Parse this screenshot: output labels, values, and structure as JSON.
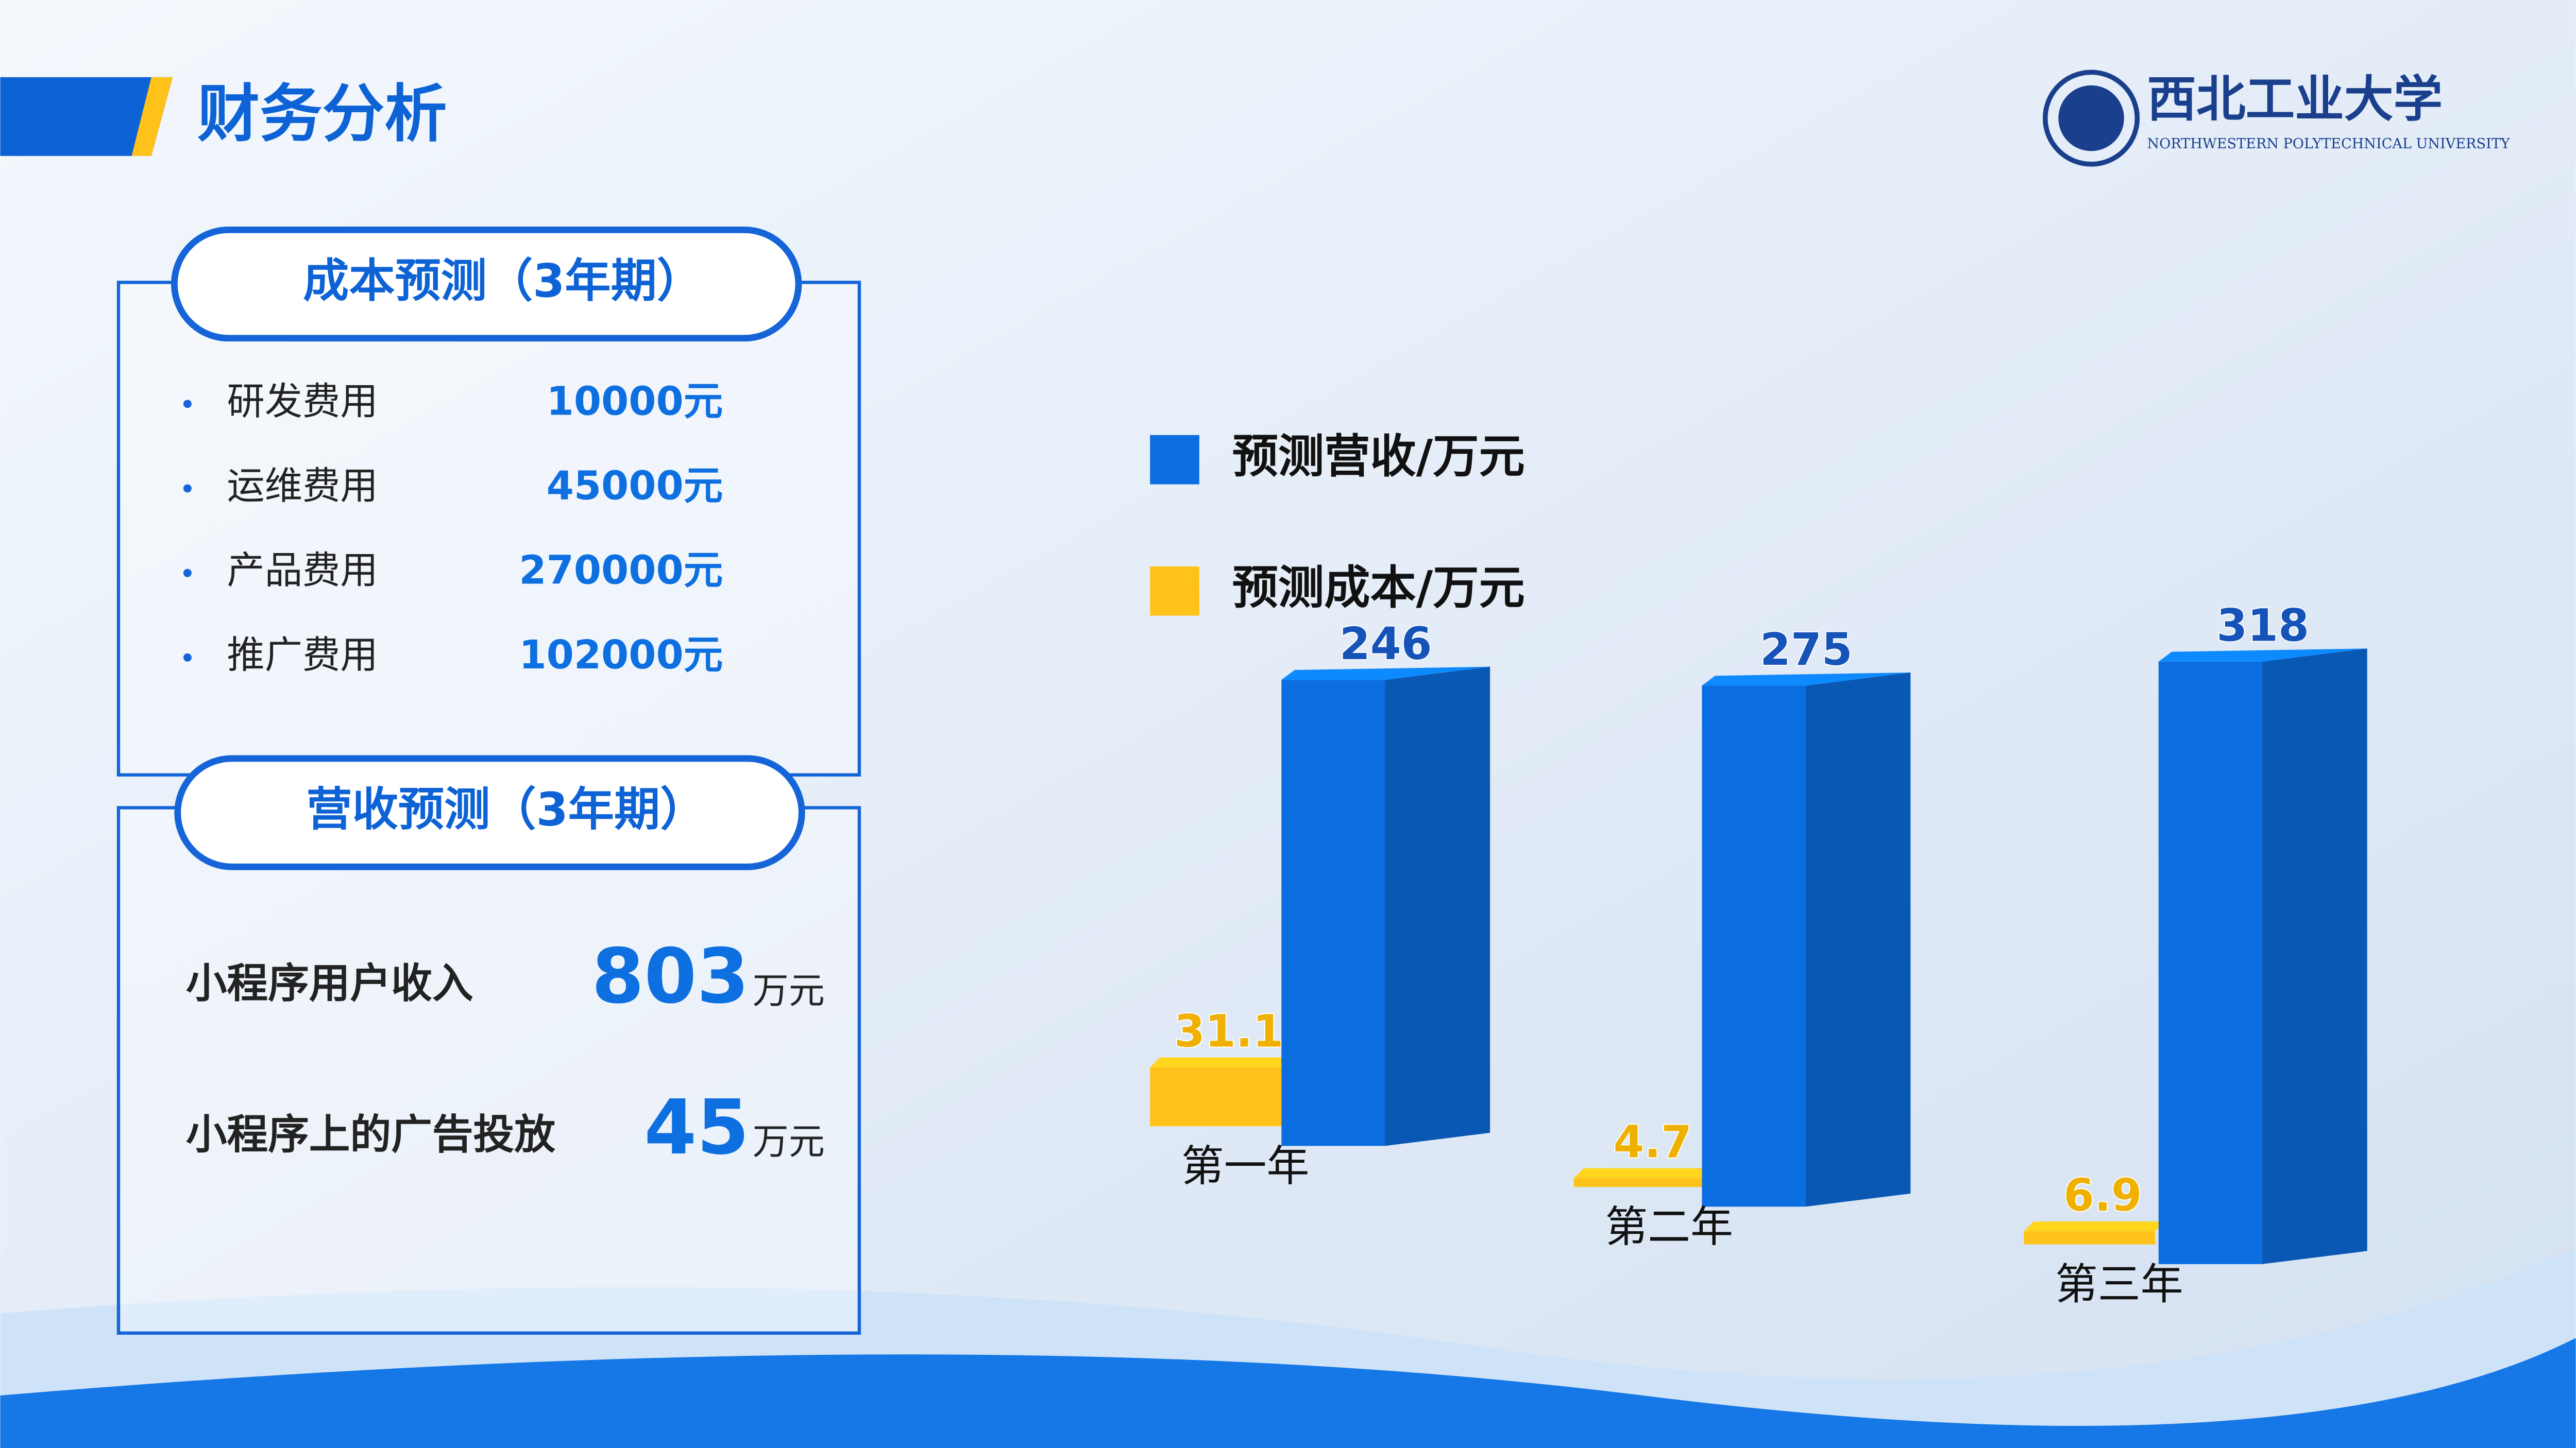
{
  "header": {
    "title": "财务分析",
    "logo_name": "西北工业大学",
    "logo_sub": "NORTHWESTERN POLYTECHNICAL UNIVERSITY"
  },
  "cost_panel": {
    "title": "成本预测（3年期）",
    "items": [
      {
        "label": "研发费用",
        "value": "10000元"
      },
      {
        "label": "运维费用",
        "value": "45000元"
      },
      {
        "label": "产品费用",
        "value": "270000元"
      },
      {
        "label": "推广费用",
        "value": "102000元"
      }
    ]
  },
  "revenue_panel": {
    "title": "营收预测（3年期）",
    "items": [
      {
        "label": "小程序用户收入",
        "value": 803,
        "unit": "万元"
      },
      {
        "label": "小程序上的广告投放",
        "value": 45,
        "unit": "万元"
      }
    ]
  },
  "chart_data": {
    "type": "bar3d",
    "categories": [
      "第一年",
      "第二年",
      "第三年"
    ],
    "series": [
      {
        "name": "预测营收/万元",
        "color": "#0b6ee0",
        "values": [
          246,
          275,
          318
        ]
      },
      {
        "name": "预测成本/万元",
        "color": "#ffc21a",
        "values": [
          31.1,
          4.7,
          6.9
        ]
      }
    ]
  }
}
